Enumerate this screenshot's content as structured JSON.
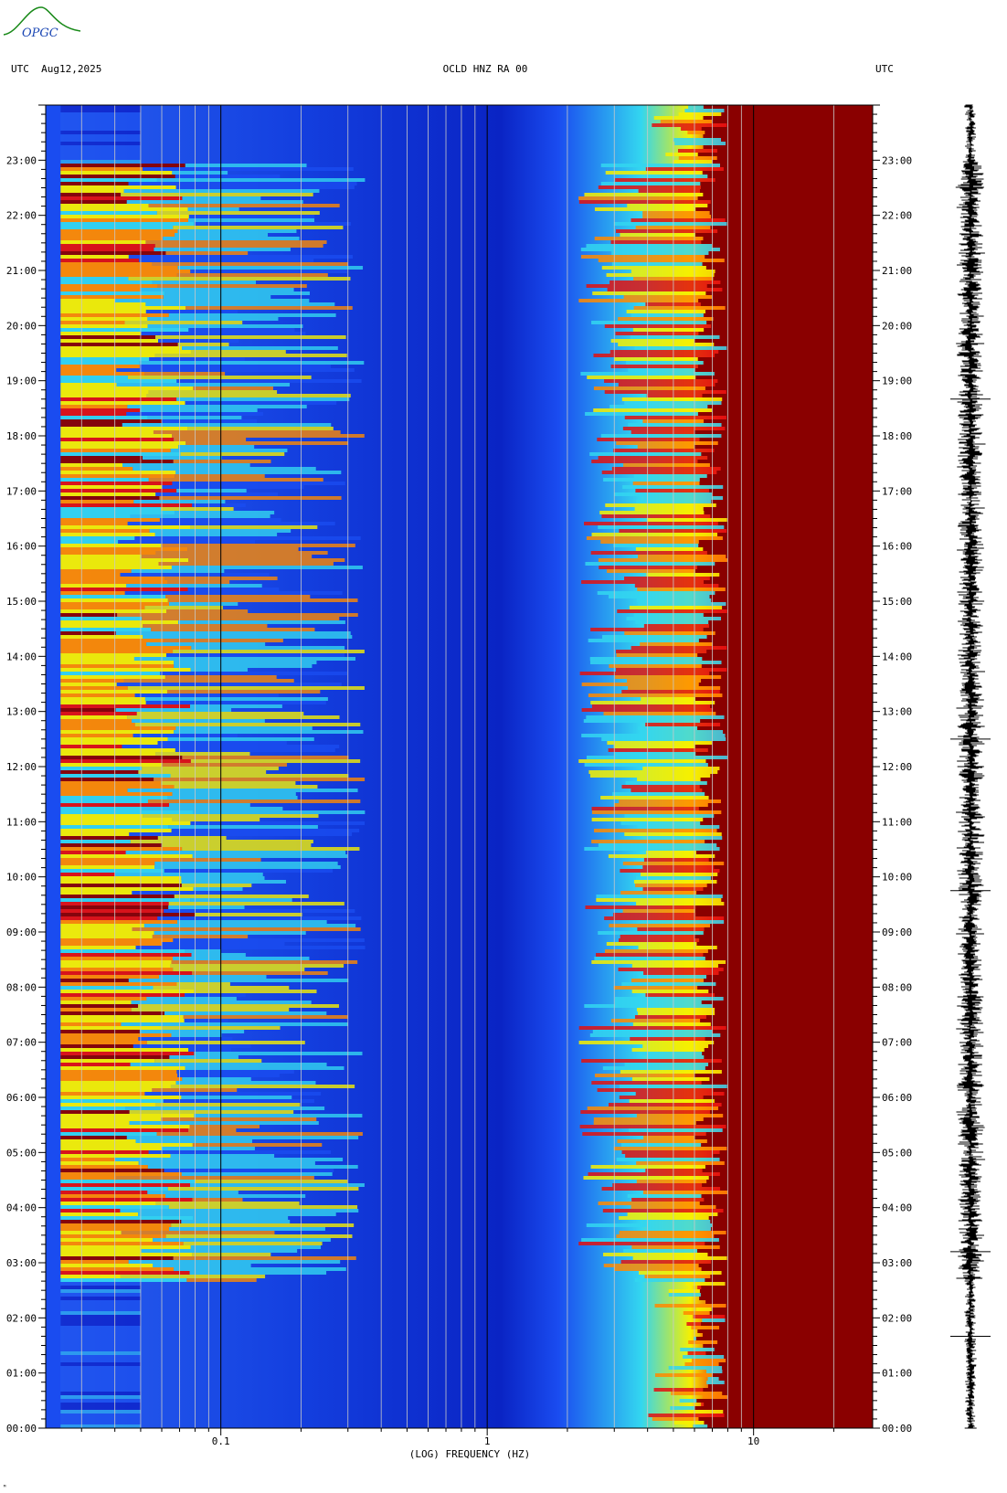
{
  "header": {
    "left": "UTC  Aug12,2025",
    "center": "OCLD HNZ RA 00",
    "right": "UTC"
  },
  "logo": {
    "text": "OPGC"
  },
  "footer": {
    "mark": "ᴹ"
  },
  "colors": {
    "darkblue": "#0000b4",
    "blue": "#1a4cf0",
    "cyan": "#33d6f0",
    "yellow": "#f6f000",
    "orange": "#ff8a00",
    "red": "#e21010",
    "darkred": "#8a0000",
    "logo_green": "#1a8a1a",
    "logo_blue": "#1a46b4"
  },
  "chart_data": {
    "type": "heatmap",
    "title": "OCLD HNZ RA 00",
    "xlabel": "(LOG) FREQUENCY (HZ)",
    "ylabel": "UTC",
    "x_scale": "log",
    "xlim": [
      0.022,
      28
    ],
    "x_tick_labels": [
      "0.1",
      "1",
      "10"
    ],
    "x_tick_values": [
      0.1,
      1,
      10
    ],
    "ylim": [
      "00:00",
      "24:00"
    ],
    "y_tick_labels": [
      "00:00",
      "01:00",
      "02:00",
      "03:00",
      "04:00",
      "05:00",
      "06:00",
      "07:00",
      "08:00",
      "09:00",
      "10:00",
      "11:00",
      "12:00",
      "13:00",
      "14:00",
      "15:00",
      "16:00",
      "17:00",
      "18:00",
      "19:00",
      "20:00",
      "21:00",
      "22:00",
      "23:00"
    ],
    "y_tick_hours": [
      0,
      1,
      2,
      3,
      4,
      5,
      6,
      7,
      8,
      9,
      10,
      11,
      12,
      13,
      14,
      15,
      16,
      17,
      18,
      19,
      20,
      21,
      22,
      23
    ],
    "activity_hours": [
      2.7,
      23.0
    ],
    "seismogram_spikes_utc": [
      "01:40",
      "03:12",
      "09:45",
      "12:30",
      "18:40"
    ]
  }
}
